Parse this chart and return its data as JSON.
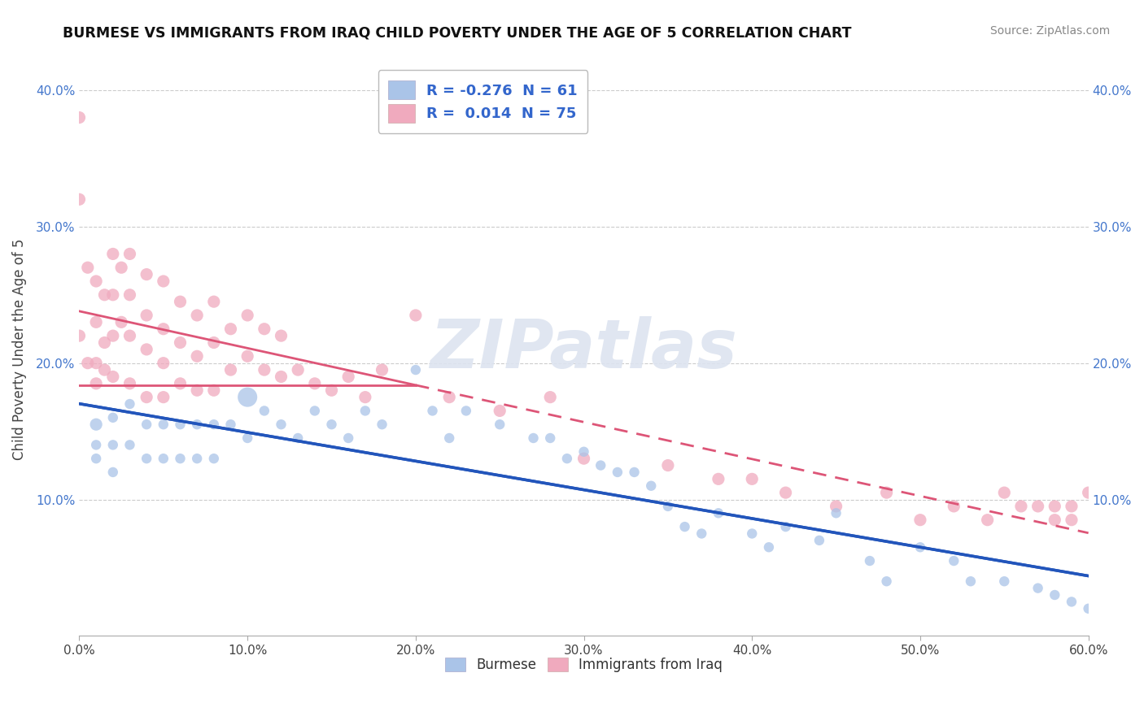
{
  "title": "BURMESE VS IMMIGRANTS FROM IRAQ CHILD POVERTY UNDER THE AGE OF 5 CORRELATION CHART",
  "source": "Source: ZipAtlas.com",
  "ylabel": "Child Poverty Under the Age of 5",
  "background_color": "#ffffff",
  "grid_color": "#cccccc",
  "watermark": "ZIPatlas",
  "burmese_color": "#aac4e8",
  "iraq_color": "#f0aabe",
  "burmese_line_color": "#2255bb",
  "iraq_line_color": "#dd5577",
  "iraq_line_dash": [
    6,
    4
  ],
  "burmese_R": -0.276,
  "burmese_N": 61,
  "iraq_R": 0.014,
  "iraq_N": 75,
  "xlim": [
    0.0,
    0.6
  ],
  "ylim": [
    0.0,
    0.42
  ],
  "xticks": [
    0.0,
    0.1,
    0.2,
    0.3,
    0.4,
    0.5,
    0.6
  ],
  "yticks": [
    0.1,
    0.2,
    0.3,
    0.4
  ],
  "xticklabels": [
    "0.0%",
    "10.0%",
    "20.0%",
    "30.0%",
    "40.0%",
    "50.0%",
    "60.0%"
  ],
  "ytick_labels": [
    "10.0%",
    "20.0%",
    "30.0%",
    "40.0%"
  ],
  "burmese_x": [
    0.01,
    0.01,
    0.01,
    0.02,
    0.02,
    0.02,
    0.03,
    0.03,
    0.04,
    0.04,
    0.05,
    0.05,
    0.06,
    0.06,
    0.07,
    0.07,
    0.08,
    0.08,
    0.09,
    0.1,
    0.1,
    0.11,
    0.12,
    0.13,
    0.14,
    0.15,
    0.16,
    0.17,
    0.18,
    0.2,
    0.21,
    0.22,
    0.23,
    0.25,
    0.27,
    0.28,
    0.29,
    0.3,
    0.31,
    0.32,
    0.33,
    0.34,
    0.35,
    0.36,
    0.37,
    0.38,
    0.4,
    0.41,
    0.42,
    0.44,
    0.45,
    0.47,
    0.48,
    0.5,
    0.52,
    0.53,
    0.55,
    0.57,
    0.58,
    0.59,
    0.6
  ],
  "burmese_y": [
    0.155,
    0.14,
    0.13,
    0.16,
    0.14,
    0.12,
    0.17,
    0.14,
    0.155,
    0.13,
    0.155,
    0.13,
    0.155,
    0.13,
    0.155,
    0.13,
    0.155,
    0.13,
    0.155,
    0.175,
    0.145,
    0.165,
    0.155,
    0.145,
    0.165,
    0.155,
    0.145,
    0.165,
    0.155,
    0.195,
    0.165,
    0.145,
    0.165,
    0.155,
    0.145,
    0.145,
    0.13,
    0.135,
    0.125,
    0.12,
    0.12,
    0.11,
    0.095,
    0.08,
    0.075,
    0.09,
    0.075,
    0.065,
    0.08,
    0.07,
    0.09,
    0.055,
    0.04,
    0.065,
    0.055,
    0.04,
    0.04,
    0.035,
    0.03,
    0.025,
    0.02
  ],
  "burmese_sizes": [
    120,
    80,
    80,
    80,
    80,
    80,
    80,
    80,
    80,
    80,
    80,
    80,
    80,
    80,
    80,
    80,
    80,
    80,
    80,
    300,
    80,
    80,
    80,
    80,
    80,
    80,
    80,
    80,
    80,
    80,
    80,
    80,
    80,
    80,
    80,
    80,
    80,
    80,
    80,
    80,
    80,
    80,
    80,
    80,
    80,
    80,
    80,
    80,
    80,
    80,
    80,
    80,
    80,
    80,
    80,
    80,
    80,
    80,
    80,
    80,
    80
  ],
  "iraq_x": [
    0.0,
    0.0,
    0.0,
    0.005,
    0.005,
    0.01,
    0.01,
    0.01,
    0.01,
    0.015,
    0.015,
    0.015,
    0.02,
    0.02,
    0.02,
    0.02,
    0.025,
    0.025,
    0.03,
    0.03,
    0.03,
    0.03,
    0.04,
    0.04,
    0.04,
    0.04,
    0.05,
    0.05,
    0.05,
    0.05,
    0.06,
    0.06,
    0.06,
    0.07,
    0.07,
    0.07,
    0.08,
    0.08,
    0.08,
    0.09,
    0.09,
    0.1,
    0.1,
    0.11,
    0.11,
    0.12,
    0.12,
    0.13,
    0.14,
    0.15,
    0.16,
    0.17,
    0.18,
    0.2,
    0.22,
    0.25,
    0.28,
    0.3,
    0.35,
    0.38,
    0.4,
    0.42,
    0.45,
    0.48,
    0.5,
    0.52,
    0.54,
    0.55,
    0.56,
    0.57,
    0.58,
    0.58,
    0.59,
    0.59,
    0.6
  ],
  "iraq_y": [
    0.38,
    0.32,
    0.22,
    0.27,
    0.2,
    0.26,
    0.23,
    0.2,
    0.185,
    0.25,
    0.215,
    0.195,
    0.28,
    0.25,
    0.22,
    0.19,
    0.27,
    0.23,
    0.28,
    0.25,
    0.22,
    0.185,
    0.265,
    0.235,
    0.21,
    0.175,
    0.26,
    0.225,
    0.2,
    0.175,
    0.245,
    0.215,
    0.185,
    0.235,
    0.205,
    0.18,
    0.245,
    0.215,
    0.18,
    0.225,
    0.195,
    0.235,
    0.205,
    0.225,
    0.195,
    0.22,
    0.19,
    0.195,
    0.185,
    0.18,
    0.19,
    0.175,
    0.195,
    0.235,
    0.175,
    0.165,
    0.175,
    0.13,
    0.125,
    0.115,
    0.115,
    0.105,
    0.095,
    0.105,
    0.085,
    0.095,
    0.085,
    0.105,
    0.095,
    0.095,
    0.085,
    0.095,
    0.085,
    0.095,
    0.105
  ]
}
